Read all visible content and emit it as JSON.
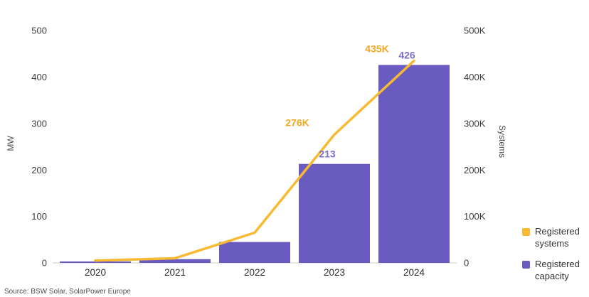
{
  "chart_data": {
    "type": "combo-bar-line",
    "categories": [
      "2020",
      "2021",
      "2022",
      "2023",
      "2024"
    ],
    "series": [
      {
        "name": "Registered systems",
        "chart": "line",
        "axis": "right",
        "color": "#F8BA33",
        "label_color": "#F2A81F",
        "values": [
          5000,
          10000,
          65000,
          276000,
          435000
        ],
        "point_labels": [
          "",
          "",
          "",
          "276K",
          "435K"
        ]
      },
      {
        "name": "Registered capacity",
        "chart": "bar",
        "axis": "left",
        "color": "#6A5BC0",
        "label_color": "#7A6FC5",
        "values": [
          3,
          8,
          45,
          213,
          426
        ],
        "point_labels": [
          "",
          "",
          "",
          "213",
          "426"
        ]
      }
    ],
    "left_axis": {
      "title": "MW",
      "min": 0,
      "max": 500,
      "ticks": [
        "0",
        "100",
        "200",
        "300",
        "400",
        "500"
      ]
    },
    "right_axis": {
      "title": "Systems",
      "min": 0,
      "max": 500000,
      "ticks": [
        "0",
        "100K",
        "200K",
        "300K",
        "400K",
        "500K"
      ]
    },
    "source": "Source: BSW Solar, SolarPower Europe"
  }
}
